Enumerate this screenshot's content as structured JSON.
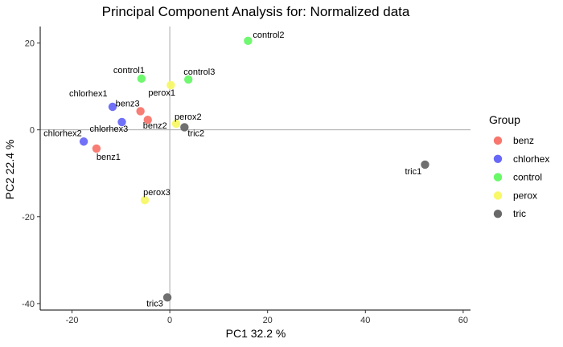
{
  "chart_data": {
    "type": "scatter",
    "title": "Principal Component Analysis for:  Normalized data",
    "xlabel": "PC1 32.2 %",
    "ylabel": "PC2 22.4 %",
    "xlim": [
      -26.5,
      61.5
    ],
    "ylim": [
      -41.5,
      23.8
    ],
    "xticks": [
      -20,
      0,
      20,
      40,
      60
    ],
    "yticks": [
      20,
      0,
      -20,
      -40
    ],
    "xtick_labels": [
      "-20",
      "0",
      "20",
      "40",
      "60"
    ],
    "ytick_labels": [
      "20",
      "0",
      "-20",
      "-40"
    ],
    "reference_lines": {
      "x": 0,
      "y": 0
    },
    "grid": false,
    "legend": {
      "title": "Group",
      "position": "right",
      "entries": [
        {
          "name": "benz",
          "color": "#f8766d"
        },
        {
          "name": "chlorhex",
          "color": "#6868f8"
        },
        {
          "name": "control",
          "color": "#68f868"
        },
        {
          "name": "perox",
          "color": "#f8f868"
        },
        {
          "name": "tric",
          "color": "#686868"
        }
      ]
    },
    "points": [
      {
        "label": "benz1",
        "group": "benz",
        "x": -15.0,
        "y": -4.3
      },
      {
        "label": "benz2",
        "group": "benz",
        "x": -4.5,
        "y": 2.3
      },
      {
        "label": "benz3",
        "group": "benz",
        "x": -6.0,
        "y": 4.3
      },
      {
        "label": "chlorhex1",
        "group": "chlorhex",
        "x": -11.7,
        "y": 5.3
      },
      {
        "label": "chlorhex2",
        "group": "chlorhex",
        "x": -17.6,
        "y": -2.7
      },
      {
        "label": "chlorhex3",
        "group": "chlorhex",
        "x": -9.8,
        "y": 1.8
      },
      {
        "label": "control1",
        "group": "control",
        "x": -5.8,
        "y": 11.8
      },
      {
        "label": "control2",
        "group": "control",
        "x": 16.0,
        "y": 20.5
      },
      {
        "label": "control3",
        "group": "control",
        "x": 3.8,
        "y": 11.6
      },
      {
        "label": "perox1",
        "group": "perox",
        "x": 0.2,
        "y": 10.3
      },
      {
        "label": "perox2",
        "group": "perox",
        "x": 1.3,
        "y": 1.4
      },
      {
        "label": "perox3",
        "group": "perox",
        "x": -5.1,
        "y": -16.2
      },
      {
        "label": "tric1",
        "group": "tric",
        "x": 52.2,
        "y": -8.0
      },
      {
        "label": "tric2",
        "group": "tric",
        "x": 3.0,
        "y": 0.6
      },
      {
        "label": "tric3",
        "group": "tric",
        "x": -0.5,
        "y": -38.6
      }
    ]
  }
}
